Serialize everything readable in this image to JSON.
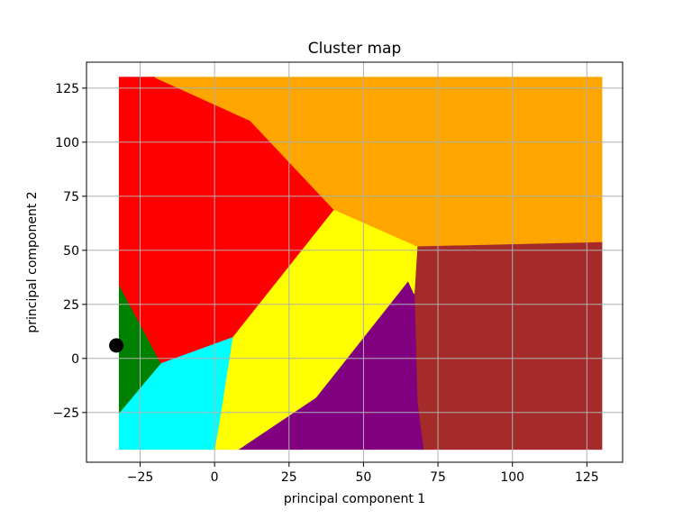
{
  "chart_data": {
    "type": "scatter",
    "title": "Cluster map",
    "xlabel": "principal component 1",
    "ylabel": "principal component 2",
    "xlim": [
      -43,
      137
    ],
    "ylim": [
      -48,
      137
    ],
    "xticks": [
      -25,
      0,
      25,
      50,
      75,
      100,
      125
    ],
    "yticks": [
      -25,
      0,
      25,
      50,
      75,
      100,
      125
    ],
    "xtick_labels": [
      "−25",
      "0",
      "25",
      "50",
      "75",
      "100",
      "125"
    ],
    "ytick_labels": [
      "−25",
      "0",
      "25",
      "50",
      "75",
      "100",
      "125"
    ],
    "grid": true,
    "regions": [
      {
        "color": "#a52a2a",
        "polygon": [
          [
            68,
            52
          ],
          [
            130,
            54
          ],
          [
            130,
            -42
          ],
          [
            70,
            -42
          ],
          [
            68,
            -20
          ],
          [
            67,
            30
          ]
        ]
      },
      {
        "color": "#800080",
        "polygon": [
          [
            67,
            30
          ],
          [
            68,
            -20
          ],
          [
            70,
            -42
          ],
          [
            8,
            -42
          ],
          [
            34,
            -18
          ],
          [
            65,
            36
          ]
        ]
      },
      {
        "color": "#ffff00",
        "polygon": [
          [
            40,
            69
          ],
          [
            68,
            52
          ],
          [
            67,
            30
          ],
          [
            65,
            36
          ],
          [
            34,
            -18
          ],
          [
            8,
            -42
          ],
          [
            0,
            -42
          ],
          [
            2,
            -25
          ],
          [
            6,
            10
          ]
        ]
      },
      {
        "color": "#00ffff",
        "polygon": [
          [
            -32,
            -25
          ],
          [
            -32,
            -42
          ],
          [
            0,
            -42
          ],
          [
            2,
            -25
          ],
          [
            6,
            10
          ],
          [
            -18,
            -2
          ]
        ]
      },
      {
        "color": "#008000",
        "polygon": [
          [
            -32,
            34
          ],
          [
            -18,
            -2
          ],
          [
            -32,
            -25
          ]
        ]
      },
      {
        "color": "#ff0000",
        "polygon": [
          [
            -32,
            130
          ],
          [
            -20,
            130
          ],
          [
            12,
            110
          ],
          [
            40,
            69
          ],
          [
            6,
            10
          ],
          [
            -18,
            -2
          ],
          [
            -32,
            34
          ]
        ]
      },
      {
        "color": "#ffa500",
        "polygon": [
          [
            -20,
            130
          ],
          [
            130,
            130
          ],
          [
            130,
            54
          ],
          [
            68,
            52
          ],
          [
            40,
            69
          ],
          [
            12,
            110
          ]
        ]
      }
    ],
    "points": [
      {
        "x": -33,
        "y": 6,
        "color": "#000000"
      }
    ]
  }
}
